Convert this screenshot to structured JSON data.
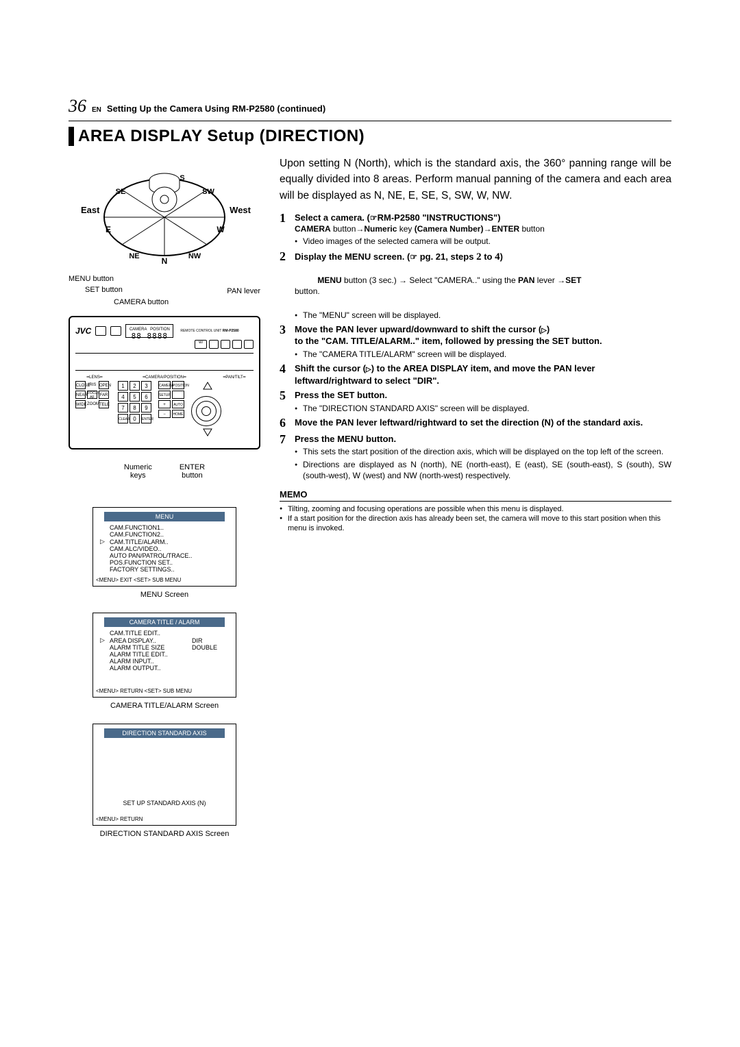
{
  "page": {
    "number": "36",
    "en": "EN",
    "header_title": "Setting Up the Camera Using RM-P2580 (continued)"
  },
  "section_title": "AREA DISPLAY Setup (DIRECTION)",
  "compass": {
    "east": "East",
    "west": "West",
    "dirs": {
      "n": "N",
      "ne": "NE",
      "e": "E",
      "se": "SE",
      "s": "S",
      "sw": "SW",
      "w": "W",
      "nw": "NW"
    }
  },
  "callouts": {
    "menu_button": "MENU button",
    "set_button": "SET button",
    "camera_button": "CAMERA button",
    "pan_lever": "PAN lever",
    "numeric_keys": "Numeric\nkeys",
    "enter_button": "ENTER\nbutton"
  },
  "remote": {
    "brand": "JVC",
    "model": "RM-P2580",
    "model_label": "REMOTE CONTROL UNIT",
    "digits": "88 8888",
    "sections": {
      "lens": "LENS",
      "campos": "CAMERA/POSITION",
      "pantilt": "PAN/TILT"
    },
    "lens_labels": {
      "iris": "IRIS",
      "focus": "FOCUS",
      "zoom": "ZOOM",
      "close": "CLOSE",
      "open": "OPEN",
      "near": "NEAR",
      "af": "AF",
      "far": "FAR",
      "wide": "WIDE",
      "tele": "TELE"
    },
    "ctrl": {
      "camera": "CAMERA",
      "position": "POSITION",
      "setup": "SETUP",
      "menu": "MENU",
      "set": "SET",
      "auto": "AUTO",
      "enter": "ENTER",
      "home": "HOME",
      "pt": "PAN/TILT"
    },
    "numpad": [
      "1",
      "2",
      "3",
      "4",
      "5",
      "6",
      "7",
      "8",
      "9",
      "0"
    ],
    "numpad_extra": {
      "clear": "CLEAR"
    },
    "speed_labels": [
      "SPEED",
      "OPTION",
      "ALARM"
    ]
  },
  "menu_screen": {
    "header": "MENU",
    "items": [
      "CAM.FUNCTION1..",
      "CAM.FUNCTION2..",
      "CAM.TITLE/ALARM..",
      "CAM.ALC/VIDEO..",
      "AUTO PAN/PATROL/TRACE..",
      "POS.FUNCTION SET..",
      "FACTORY SETTINGS.."
    ],
    "cursor_index": 2,
    "footer": "<MENU> EXIT  <SET> SUB  MENU",
    "caption": "MENU Screen"
  },
  "title_alarm_screen": {
    "header": "CAMERA  TITLE / ALARM",
    "rows": [
      {
        "c1": "CAM.TITLE EDIT..",
        "c2": ""
      },
      {
        "c1": "AREA DISPLAY..",
        "c2": "DIR"
      },
      {
        "c1": "ALARM TITLE  SIZE",
        "c2": "DOUBLE"
      },
      {
        "c1": "ALARM TITLE  EDIT..",
        "c2": ""
      },
      {
        "c1": "ALARM  INPUT..",
        "c2": ""
      },
      {
        "c1": "ALARM  OUTPUT..",
        "c2": ""
      }
    ],
    "cursor_index": 1,
    "footer": "<MENU> RETURN   <SET> SUB  MENU",
    "caption": "CAMERA TITLE/ALARM Screen"
  },
  "direction_screen": {
    "header": "DIRECTION  STANDARD  AXIS",
    "setup_line": "SET  UP  STANDARD  AXIS (N)",
    "footer": "<MENU> RETURN",
    "caption": "DIRECTION STANDARD AXIS Screen"
  },
  "content": {
    "intro": "Upon setting N (North), which is the standard axis, the 360° panning range will be equally divided into 8 areas. Perform manual panning of the camera and each area will be displayed as N, NE, E, SE, S, SW, W, NW.",
    "step1": {
      "title_a": "Select a camera. (",
      "title_b": "RM-P2580",
      "title_c": "INSTRUCTIONS",
      "title_close": ")",
      "line2_a": "CAMERA",
      "line2_b": " button→",
      "line2_c": "Numeric",
      "line2_d": " key ",
      "line2_e": "(Camera Number)",
      "line2_f": "→",
      "line2_g": "ENTER",
      "line2_h": " button",
      "bullet": "Video images of the selected camera will be output."
    },
    "step2": {
      "title_a": "Display the MENU screen. (",
      "title_b": " pg. 21, steps ",
      "title_c": "2",
      "title_d": " to ",
      "title_e": "4",
      "title_f": ")",
      "line2_a": "MENU",
      "line2_b": " button (3 sec.) → Select \"CAMERA..\" using the ",
      "line2_c": "PAN",
      "line2_d": " lever →",
      "line2_e": "SET",
      "line2_f": "\nbutton.",
      "bullet": "The \"MENU\" screen will be displayed."
    },
    "step3": {
      "title_a": "Move the PAN lever upward/downward to shift the cursor (",
      "title_b": ")\nto the ",
      "title_c": "CAM. TITLE/ALARM..",
      "title_d": " item, followed by pressing the SET button.",
      "bullet": "The \"CAMERA TITLE/ALARM\" screen will be displayed."
    },
    "step4": {
      "title_a": "Shift the cursor (",
      "title_b": ") to the AREA DISPLAY item, and move the PAN lever leftward/rightward to select ",
      "title_c": "DIR",
      "title_d": "."
    },
    "step5": {
      "title": "Press the SET button.",
      "bullet": "The \"DIRECTION STANDARD AXIS\" screen will be displayed."
    },
    "step6": {
      "title": "Move the PAN lever leftward/rightward to set the direction (N) of the standard axis."
    },
    "step7": {
      "title": "Press the MENU button.",
      "bullet1": "This sets the start position of the direction axis, which will be displayed on the top left of the screen.",
      "bullet2": "Directions are displayed as N (north), NE (north-east), E (east), SE (south-east), S (south), SW (south-west), W (west) and NW (north-west) respectively."
    },
    "memo": {
      "head": "MEMO",
      "b1": "Tilting, zooming and focusing operations are possible when this menu is displayed.",
      "b2": "If a start position for the direction axis has already been set, the camera will move to this start position when this menu is invoked."
    }
  }
}
